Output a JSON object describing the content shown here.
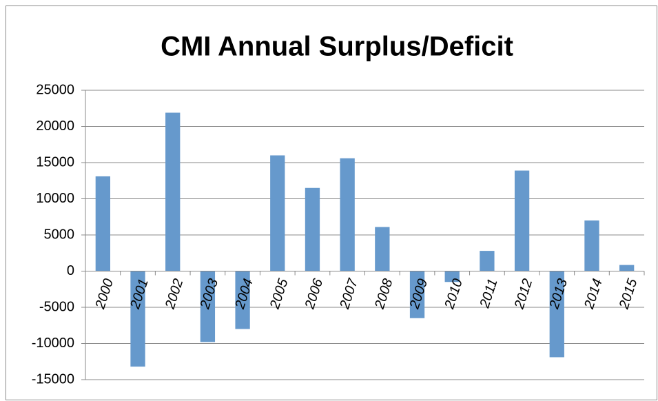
{
  "chart_data": {
    "type": "bar",
    "title": "CMI Annual Surplus/Deficit",
    "categories": [
      "2000",
      "2001",
      "2002",
      "2003",
      "2004",
      "2005",
      "2006",
      "2007",
      "2008",
      "2009",
      "2010",
      "2011",
      "2012",
      "2013",
      "2014",
      "2015"
    ],
    "values": [
      13100,
      -13200,
      21900,
      -9800,
      -8000,
      16000,
      11500,
      15600,
      6100,
      -6500,
      -1500,
      2800,
      13900,
      -11900,
      7000,
      850
    ],
    "color": "#6699cc",
    "ylim": [
      -15000,
      25000
    ],
    "yticks": [
      -15000,
      -10000,
      -5000,
      0,
      5000,
      10000,
      15000,
      20000,
      25000
    ],
    "grid": true
  }
}
